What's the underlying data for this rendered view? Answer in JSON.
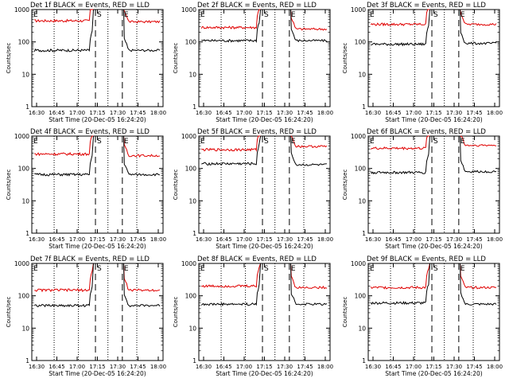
{
  "chart_data": [
    {
      "type": "line",
      "title": "Det 1f BLACK = Events, RED = LLD",
      "xlabel": "Start Time (20-Dec-05 16:24:20)",
      "ylabel": "Counts/sec",
      "yscale": "log",
      "ylim": [
        1,
        1000
      ],
      "xticks": [
        "16:30",
        "16:45",
        "17:00",
        "17:15",
        "17:30",
        "17:45",
        "18:00"
      ],
      "yticks": [
        "1",
        "10",
        "100",
        "1000"
      ],
      "markers": [
        {
          "label": "E",
          "style": "dashed"
        },
        {
          "label": "S",
          "style": "dashed"
        },
        {
          "label": "E",
          "style": "dashed"
        }
      ],
      "series": [
        {
          "color": "#e00000",
          "level_before": 450,
          "level_after": 420
        },
        {
          "color": "#000000",
          "level_before": 55,
          "level_after": 55
        }
      ]
    },
    {
      "type": "line",
      "title": "Det 2f BLACK = Events, RED = LLD",
      "xlabel": "Start Time (20-Dec-05 16:24:20)",
      "ylabel": "Counts/sec",
      "yscale": "log",
      "ylim": [
        1,
        1000
      ],
      "xticks": [
        "16:30",
        "16:45",
        "17:00",
        "17:15",
        "17:30",
        "17:45",
        "18:00"
      ],
      "yticks": [
        "1",
        "10",
        "100",
        "1000"
      ],
      "markers": [
        {
          "label": "E",
          "style": "dashed"
        },
        {
          "label": "S",
          "style": "dashed"
        },
        {
          "label": "E",
          "style": "dashed"
        }
      ],
      "series": [
        {
          "color": "#e00000",
          "level_before": 280,
          "level_after": 250
        },
        {
          "color": "#000000",
          "level_before": 110,
          "level_after": 110
        }
      ]
    },
    {
      "type": "line",
      "title": "Det 3f BLACK = Events, RED = LLD",
      "xlabel": "Start Time (20-Dec-05 16:24:20)",
      "ylabel": "Counts/sec",
      "yscale": "log",
      "ylim": [
        1,
        1000
      ],
      "xticks": [
        "16:30",
        "16:45",
        "17:00",
        "17:15",
        "17:30",
        "17:45",
        "18:00"
      ],
      "yticks": [
        "1",
        "10",
        "100",
        "1000"
      ],
      "markers": [
        {
          "label": "E",
          "style": "dashed"
        },
        {
          "label": "S",
          "style": "dashed"
        },
        {
          "label": "E",
          "style": "dashed"
        }
      ],
      "series": [
        {
          "color": "#e00000",
          "level_before": 350,
          "level_after": 350
        },
        {
          "color": "#000000",
          "level_before": 85,
          "level_after": 90
        }
      ]
    },
    {
      "type": "line",
      "title": "Det 4f BLACK = Events, RED = LLD",
      "xlabel": "Start Time (20-Dec-05 16:24:20)",
      "ylabel": "Counts/sec",
      "yscale": "log",
      "ylim": [
        1,
        1000
      ],
      "xticks": [
        "16:30",
        "16:45",
        "17:00",
        "17:15",
        "17:30",
        "17:45",
        "18:00"
      ],
      "yticks": [
        "1",
        "10",
        "100",
        "1000"
      ],
      "markers": [
        {
          "label": "E",
          "style": "dashed"
        },
        {
          "label": "S",
          "style": "dashed"
        },
        {
          "label": "E",
          "style": "dashed"
        }
      ],
      "series": [
        {
          "color": "#e00000",
          "level_before": 280,
          "level_after": 250
        },
        {
          "color": "#000000",
          "level_before": 65,
          "level_after": 65
        }
      ]
    },
    {
      "type": "line",
      "title": "Det 5f BLACK = Events, RED = LLD",
      "xlabel": "Start Time (20-Dec-05 16:24:20)",
      "ylabel": "Counts/sec",
      "yscale": "log",
      "ylim": [
        1,
        1000
      ],
      "xticks": [
        "16:30",
        "16:45",
        "17:00",
        "17:15",
        "17:30",
        "17:45",
        "18:00"
      ],
      "yticks": [
        "1",
        "10",
        "100",
        "1000"
      ],
      "markers": [
        {
          "label": "E",
          "style": "dashed"
        },
        {
          "label": "S",
          "style": "dashed"
        },
        {
          "label": "E",
          "style": "dashed"
        }
      ],
      "series": [
        {
          "color": "#e00000",
          "level_before": 380,
          "level_after": 480
        },
        {
          "color": "#000000",
          "level_before": 140,
          "level_after": 130
        }
      ]
    },
    {
      "type": "line",
      "title": "Det 6f BLACK = Events, RED = LLD",
      "xlabel": "Start Time (20-Dec-05 16:24:20)",
      "ylabel": "Counts/sec",
      "yscale": "log",
      "ylim": [
        1,
        1000
      ],
      "xticks": [
        "16:30",
        "16:45",
        "17:00",
        "17:15",
        "17:30",
        "17:45",
        "18:00"
      ],
      "yticks": [
        "1",
        "10",
        "100",
        "1000"
      ],
      "markers": [
        {
          "label": "E",
          "style": "dashed"
        },
        {
          "label": "S",
          "style": "dashed"
        },
        {
          "label": "E",
          "style": "dashed"
        }
      ],
      "series": [
        {
          "color": "#e00000",
          "level_before": 420,
          "level_after": 520
        },
        {
          "color": "#000000",
          "level_before": 75,
          "level_after": 80
        }
      ]
    },
    {
      "type": "line",
      "title": "Det 7f BLACK = Events, RED = LLD",
      "xlabel": "Start Time (20-Dec-05 16:24:20)",
      "ylabel": "Counts/sec",
      "yscale": "log",
      "ylim": [
        1,
        1000
      ],
      "xticks": [
        "16:30",
        "16:45",
        "17:00",
        "17:15",
        "17:30",
        "17:45",
        "18:00"
      ],
      "yticks": [
        "1",
        "10",
        "100",
        "1000"
      ],
      "markers": [
        {
          "label": "E",
          "style": "dashed"
        },
        {
          "label": "S",
          "style": "dashed"
        },
        {
          "label": "E",
          "style": "dashed"
        }
      ],
      "series": [
        {
          "color": "#e00000",
          "level_before": 150,
          "level_after": 150
        },
        {
          "color": "#000000",
          "level_before": 50,
          "level_after": 50
        }
      ]
    },
    {
      "type": "line",
      "title": "Det 8f BLACK = Events, RED = LLD",
      "xlabel": "Start Time (20-Dec-05 16:24:20)",
      "ylabel": "Counts/sec",
      "yscale": "log",
      "ylim": [
        1,
        1000
      ],
      "xticks": [
        "16:30",
        "16:45",
        "17:00",
        "17:15",
        "17:30",
        "17:45",
        "18:00"
      ],
      "yticks": [
        "1",
        "10",
        "100",
        "1000"
      ],
      "markers": [
        {
          "label": "E",
          "style": "dashed"
        },
        {
          "label": "S",
          "style": "dashed"
        },
        {
          "label": "E",
          "style": "dashed"
        }
      ],
      "series": [
        {
          "color": "#e00000",
          "level_before": 200,
          "level_after": 180
        },
        {
          "color": "#000000",
          "level_before": 55,
          "level_after": 55
        }
      ]
    },
    {
      "type": "line",
      "title": "Det 9f BLACK = Events, RED = LLD",
      "xlabel": "Start Time (20-Dec-05 16:24:20)",
      "ylabel": "Counts/sec",
      "yscale": "log",
      "ylim": [
        1,
        1000
      ],
      "xticks": [
        "16:30",
        "16:45",
        "17:00",
        "17:15",
        "17:30",
        "17:45",
        "18:00"
      ],
      "yticks": [
        "1",
        "10",
        "100",
        "1000"
      ],
      "markers": [
        {
          "label": "E",
          "style": "dashed"
        },
        {
          "label": "S",
          "style": "dashed"
        },
        {
          "label": "E",
          "style": "dashed"
        }
      ],
      "series": [
        {
          "color": "#e00000",
          "level_before": 180,
          "level_after": 180
        },
        {
          "color": "#000000",
          "level_before": 60,
          "level_after": 55
        }
      ]
    }
  ]
}
